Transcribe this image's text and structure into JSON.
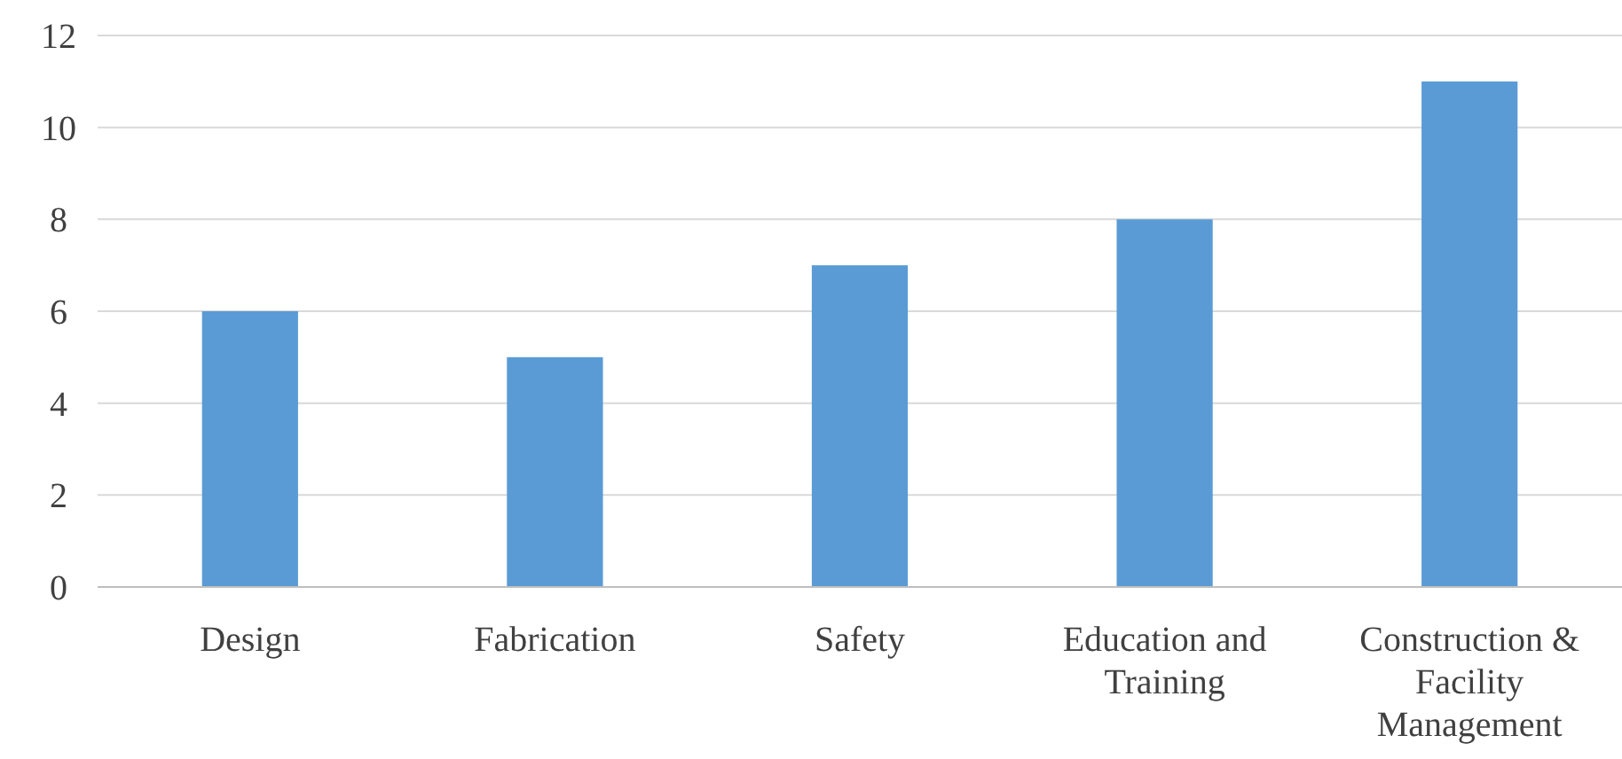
{
  "chart_data": {
    "type": "bar",
    "categories": [
      "Design",
      "Fabrication",
      "Safety",
      "Education and Training",
      "Construction & Facility Management"
    ],
    "values": [
      6,
      5,
      7,
      8,
      11
    ],
    "color": "#5b9bd5",
    "ylim": [
      0,
      12
    ],
    "yticks": [
      0,
      2,
      4,
      6,
      8,
      10,
      12
    ],
    "grid": "y"
  }
}
